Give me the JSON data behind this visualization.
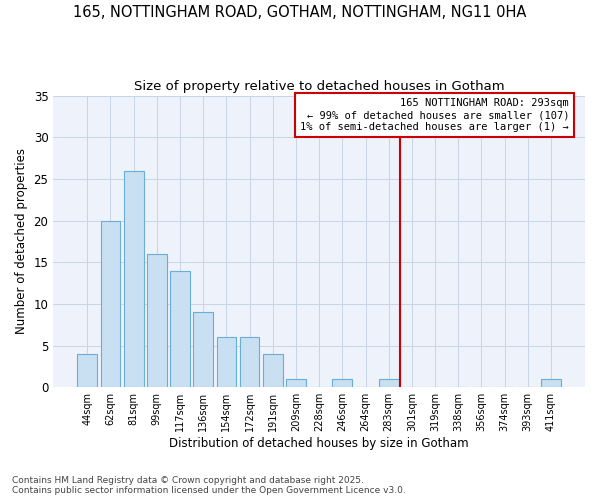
{
  "title1": "165, NOTTINGHAM ROAD, GOTHAM, NOTTINGHAM, NG11 0HA",
  "title2": "Size of property relative to detached houses in Gotham",
  "xlabel": "Distribution of detached houses by size in Gotham",
  "ylabel": "Number of detached properties",
  "categories": [
    "44sqm",
    "62sqm",
    "81sqm",
    "99sqm",
    "117sqm",
    "136sqm",
    "154sqm",
    "172sqm",
    "191sqm",
    "209sqm",
    "228sqm",
    "246sqm",
    "264sqm",
    "283sqm",
    "301sqm",
    "319sqm",
    "338sqm",
    "356sqm",
    "374sqm",
    "393sqm",
    "411sqm"
  ],
  "values": [
    4,
    20,
    26,
    16,
    14,
    9,
    6,
    6,
    4,
    1,
    0,
    1,
    0,
    1,
    0,
    0,
    0,
    0,
    0,
    0,
    1
  ],
  "bar_color": "#c9dff2",
  "bar_edge_color": "#6aadd5",
  "grid_color": "#c8d4e8",
  "vline_x": 13.5,
  "vline_color": "#cc0000",
  "annotation_line1": "165 NOTTINGHAM ROAD: 293sqm",
  "annotation_line2": "← 99% of detached houses are smaller (107)",
  "annotation_line3": "1% of semi-detached houses are larger (1) →",
  "annot_box_edge_color": "#cc0000",
  "ylim_max": 35,
  "yticks": [
    0,
    5,
    10,
    15,
    20,
    25,
    30,
    35
  ],
  "bg_color": "#edf2fb",
  "footer_line1": "Contains HM Land Registry data © Crown copyright and database right 2025.",
  "footer_line2": "Contains public sector information licensed under the Open Government Licence v3.0."
}
